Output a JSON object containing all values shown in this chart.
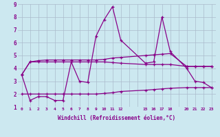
{
  "bg_color": "#cce8f0",
  "grid_color": "#aabbcc",
  "line_color": "#880088",
  "xlabel": "Windchill (Refroidissement éolien,°C)",
  "xlim": [
    -0.5,
    23.5
  ],
  "ylim": [
    1,
    9
  ],
  "xticks": [
    0,
    1,
    2,
    3,
    4,
    5,
    6,
    7,
    8,
    9,
    10,
    11,
    12,
    15,
    16,
    17,
    18,
    20,
    21,
    22,
    23
  ],
  "yticks": [
    1,
    2,
    3,
    4,
    5,
    6,
    7,
    8,
    9
  ],
  "series": [
    {
      "x": [
        0,
        1,
        2,
        3,
        4,
        5,
        6,
        7,
        8,
        9,
        10,
        11,
        12,
        15,
        16,
        17,
        18,
        20,
        21,
        22,
        23
      ],
      "y": [
        3.5,
        1.5,
        1.8,
        1.8,
        1.5,
        1.5,
        4.5,
        3.0,
        2.9,
        6.5,
        7.8,
        8.8,
        6.2,
        4.4,
        4.5,
        8.0,
        5.3,
        4.0,
        3.0,
        2.9,
        2.5
      ]
    },
    {
      "x": [
        0,
        1,
        2,
        3,
        4,
        5,
        6,
        7,
        8,
        9,
        10,
        11,
        12,
        15,
        16,
        17,
        18,
        20,
        21,
        22,
        23
      ],
      "y": [
        3.5,
        4.5,
        4.6,
        4.65,
        4.65,
        4.65,
        4.65,
        4.65,
        4.65,
        4.65,
        4.7,
        4.8,
        4.85,
        5.0,
        5.05,
        5.1,
        5.15,
        4.15,
        4.15,
        4.15,
        4.15
      ]
    },
    {
      "x": [
        0,
        1,
        2,
        3,
        4,
        5,
        6,
        7,
        8,
        9,
        10,
        11,
        12,
        15,
        16,
        17,
        18,
        20,
        21,
        22,
        23
      ],
      "y": [
        3.5,
        4.5,
        4.5,
        4.5,
        4.5,
        4.5,
        4.5,
        4.5,
        4.5,
        4.5,
        4.5,
        4.45,
        4.4,
        4.3,
        4.3,
        4.3,
        4.3,
        4.15,
        4.15,
        4.15,
        4.15
      ]
    },
    {
      "x": [
        0,
        1,
        2,
        3,
        4,
        5,
        6,
        7,
        8,
        9,
        10,
        11,
        12,
        15,
        16,
        17,
        18,
        20,
        21,
        22,
        23
      ],
      "y": [
        2.0,
        2.0,
        2.0,
        2.0,
        2.0,
        2.0,
        2.0,
        2.0,
        2.0,
        2.0,
        2.05,
        2.1,
        2.2,
        2.3,
        2.35,
        2.4,
        2.45,
        2.5,
        2.5,
        2.5,
        2.5
      ]
    }
  ]
}
